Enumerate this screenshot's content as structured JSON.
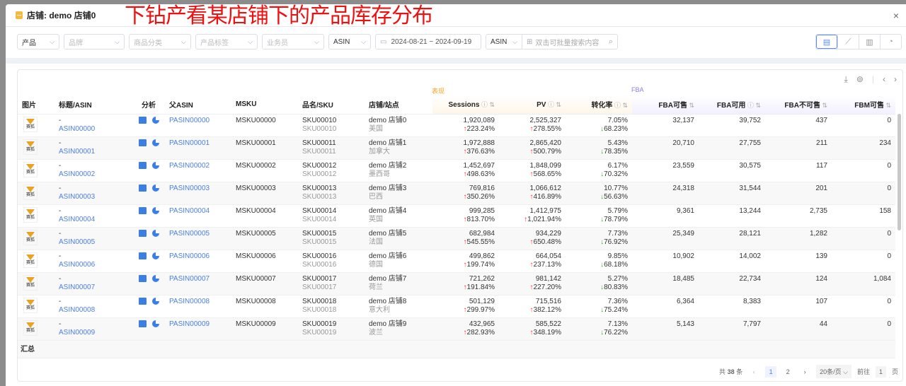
{
  "modal": {
    "title": "店铺: demo 店铺0",
    "close": "×"
  },
  "annotation": "下钻产看某店铺下的产品库存分布",
  "filters": [
    {
      "label": "产品",
      "placeholder": false
    },
    {
      "label": "品牌",
      "placeholder": true
    },
    {
      "label": "商品分类",
      "placeholder": true
    },
    {
      "label": "产品标签",
      "placeholder": true
    },
    {
      "label": "业务员",
      "placeholder": true
    },
    {
      "label": "ASIN",
      "placeholder": false
    }
  ],
  "date_range": {
    "start": "2024-08-21",
    "sep": "~",
    "end": "2024-09-19"
  },
  "search": {
    "type": "ASIN",
    "placeholder": "双击可批量搜索内容"
  },
  "view_icons": [
    "table-icon",
    "line-chart-icon",
    "bar-chart-icon",
    "pie-chart-icon"
  ],
  "groups": {
    "performance": "表现",
    "fba": "FBA"
  },
  "colors": {
    "accent": "#4a7ee8",
    "up": "#f03030",
    "down": "#3cb043",
    "performance_group": "#f5a623",
    "fba_group": "#8a7ef0"
  },
  "columns": [
    "图片",
    "标题/ASIN",
    "分析",
    "父ASIN",
    "MSKU",
    "品名/SKU",
    "店铺/站点",
    "Sessions",
    "PV",
    "转化率",
    "FBA可售",
    "FBA可用",
    "FBA不可售",
    "FBM可售"
  ],
  "thumb_label": "赛狐",
  "rows": [
    {
      "title": "-",
      "asin": "ASIN00000",
      "parent": "PASIN00000",
      "msku": "MSKU00000",
      "sku": "SKU00010",
      "sku2": "SKU00010",
      "shop": "demo 店铺0",
      "site": "美国",
      "sessions": "1,920,089",
      "sessions_chg": "223.24%",
      "pv": "2,525,327",
      "pv_chg": "278.55%",
      "conv": "7.05%",
      "conv_chg": "68.23%",
      "fba": "32,137",
      "fba_avail": "39,752",
      "fba_unsell": "437",
      "fbm": "0"
    },
    {
      "title": "-",
      "asin": "ASIN00001",
      "parent": "PASIN00001",
      "msku": "MSKU00001",
      "sku": "SKU00011",
      "sku2": "SKU00011",
      "shop": "demo 店铺1",
      "site": "加拿大",
      "sessions": "1,972,888",
      "sessions_chg": "376.63%",
      "pv": "2,865,420",
      "pv_chg": "500.79%",
      "conv": "5.43%",
      "conv_chg": "78.35%",
      "fba": "20,710",
      "fba_avail": "27,755",
      "fba_unsell": "211",
      "fbm": "234"
    },
    {
      "title": "-",
      "asin": "ASIN00002",
      "parent": "PASIN00002",
      "msku": "MSKU00002",
      "sku": "SKU00012",
      "sku2": "SKU00012",
      "shop": "demo 店铺2",
      "site": "墨西哥",
      "sessions": "1,452,697",
      "sessions_chg": "498.63%",
      "pv": "1,848,099",
      "pv_chg": "568.65%",
      "conv": "6.17%",
      "conv_chg": "70.32%",
      "fba": "23,559",
      "fba_avail": "30,575",
      "fba_unsell": "117",
      "fbm": "0"
    },
    {
      "title": "-",
      "asin": "ASIN00003",
      "parent": "PASIN00003",
      "msku": "MSKU00003",
      "sku": "SKU00013",
      "sku2": "SKU00013",
      "shop": "demo 店铺3",
      "site": "巴西",
      "sessions": "769,816",
      "sessions_chg": "350.26%",
      "pv": "1,066,612",
      "pv_chg": "416.89%",
      "conv": "10.77%",
      "conv_chg": "56.63%",
      "fba": "24,318",
      "fba_avail": "31,544",
      "fba_unsell": "201",
      "fbm": "0"
    },
    {
      "title": "-",
      "asin": "ASIN00004",
      "parent": "PASIN00004",
      "msku": "MSKU00004",
      "sku": "SKU00014",
      "sku2": "SKU00014",
      "shop": "demo 店铺4",
      "site": "英国",
      "sessions": "999,285",
      "sessions_chg": "813.70%",
      "pv": "1,412,975",
      "pv_chg": "1,021.94%",
      "conv": "5.79%",
      "conv_chg": "78.79%",
      "fba": "9,361",
      "fba_avail": "13,244",
      "fba_unsell": "2,735",
      "fbm": "158"
    },
    {
      "title": "-",
      "asin": "ASIN00005",
      "parent": "PASIN00005",
      "msku": "MSKU00005",
      "sku": "SKU00015",
      "sku2": "SKU00015",
      "shop": "demo 店铺5",
      "site": "法国",
      "sessions": "682,984",
      "sessions_chg": "545.55%",
      "pv": "934,229",
      "pv_chg": "650.48%",
      "conv": "7.73%",
      "conv_chg": "76.92%",
      "fba": "25,349",
      "fba_avail": "28,121",
      "fba_unsell": "1,282",
      "fbm": "0"
    },
    {
      "title": "-",
      "asin": "ASIN00006",
      "parent": "PASIN00006",
      "msku": "MSKU00006",
      "sku": "SKU00016",
      "sku2": "SKU00016",
      "shop": "demo 店铺6",
      "site": "德国",
      "sessions": "499,862",
      "sessions_chg": "199.74%",
      "pv": "664,054",
      "pv_chg": "237.13%",
      "conv": "9.85%",
      "conv_chg": "68.18%",
      "fba": "10,902",
      "fba_avail": "14,002",
      "fba_unsell": "139",
      "fbm": "0"
    },
    {
      "title": "-",
      "asin": "ASIN00007",
      "parent": "PASIN00007",
      "msku": "MSKU00007",
      "sku": "SKU00017",
      "sku2": "SKU00017",
      "shop": "demo 店铺7",
      "site": "荷兰",
      "sessions": "721,262",
      "sessions_chg": "191.84%",
      "pv": "981,142",
      "pv_chg": "227.20%",
      "conv": "5.27%",
      "conv_chg": "80.83%",
      "fba": "18,485",
      "fba_avail": "22,734",
      "fba_unsell": "124",
      "fbm": "1,084"
    },
    {
      "title": "-",
      "asin": "ASIN00008",
      "parent": "PASIN00008",
      "msku": "MSKU00008",
      "sku": "SKU00018",
      "sku2": "SKU00018",
      "shop": "demo 店铺8",
      "site": "意大利",
      "sessions": "501,129",
      "sessions_chg": "299.97%",
      "pv": "715,516",
      "pv_chg": "382.12%",
      "conv": "7.36%",
      "conv_chg": "75.24%",
      "fba": "6,364",
      "fba_avail": "8,383",
      "fba_unsell": "107",
      "fbm": "0"
    },
    {
      "title": "-",
      "asin": "ASIN00009",
      "parent": "PASIN00009",
      "msku": "MSKU00009",
      "sku": "SKU00019",
      "sku2": "SKU00019",
      "shop": "demo 店铺9",
      "site": "波兰",
      "sessions": "432,965",
      "sessions_chg": "282.93%",
      "pv": "585,522",
      "pv_chg": "348.19%",
      "conv": "7.13%",
      "conv_chg": "76.22%",
      "fba": "5,143",
      "fba_avail": "7,797",
      "fba_unsell": "44",
      "fbm": "0"
    }
  ],
  "summary_label": "汇总",
  "pagination": {
    "total_prefix": "共",
    "total": "38",
    "total_suffix": "条",
    "pages": [
      "1",
      "2"
    ],
    "current": "1",
    "page_size": "20条/页",
    "goto_label": "前往",
    "goto_value": "1",
    "goto_suffix": "页"
  }
}
